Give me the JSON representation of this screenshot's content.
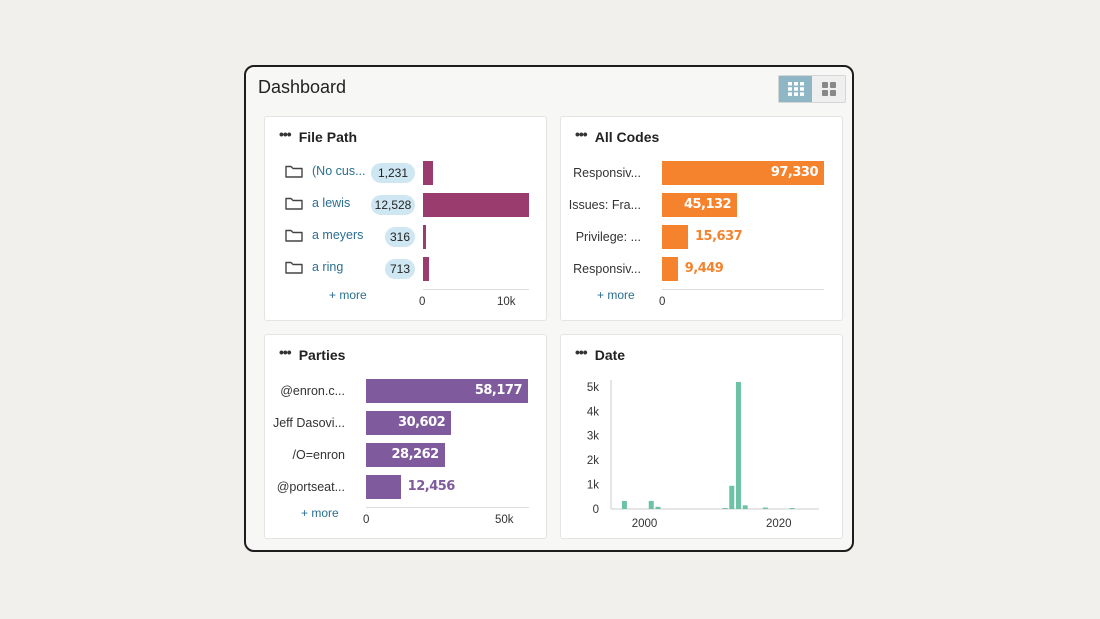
{
  "dashboard": {
    "title": "Dashboard",
    "view_toggle": [
      "grid-view-icon",
      "tile-view-icon"
    ]
  },
  "file_path": {
    "title": "File Path",
    "more": "+ more",
    "axis_ticks": [
      "0",
      "10k"
    ],
    "color": "#9b3c6e",
    "rows": [
      {
        "label": "(No cus...",
        "count": "1,231",
        "value": 1231
      },
      {
        "label": "a lewis",
        "count": "12,528",
        "value": 12528
      },
      {
        "label": "a meyers",
        "count": "316",
        "value": 316
      },
      {
        "label": "a ring",
        "count": "713",
        "value": 713
      }
    ]
  },
  "all_codes": {
    "title": "All Codes",
    "more": "+ more",
    "axis_ticks": [
      "0"
    ],
    "color": "#f5832d",
    "rows": [
      {
        "label": "Responsiv...",
        "count": "97,330",
        "value": 97330
      },
      {
        "label": "Issues: Fra...",
        "count": "45,132",
        "value": 45132
      },
      {
        "label": "Privilege: ...",
        "count": "15,637",
        "value": 15637
      },
      {
        "label": "Responsiv...",
        "count": "9,449",
        "value": 9449
      }
    ]
  },
  "parties": {
    "title": "Parties",
    "more": "+ more",
    "axis_ticks": [
      "0",
      "50k"
    ],
    "color": "#7f5a9c",
    "rows": [
      {
        "label": "@enron.c...",
        "count": "58,177",
        "value": 58177
      },
      {
        "label": "Jeff Dasovi...",
        "count": "30,602",
        "value": 30602
      },
      {
        "label": "/O=enron",
        "count": "28,262",
        "value": 28262
      },
      {
        "label": "@portseat...",
        "count": "12,456",
        "value": 12456
      }
    ]
  },
  "date": {
    "title": "Date",
    "color": "#6cc3a4",
    "chart_data": {
      "type": "bar",
      "title": "Date",
      "xlabel": "",
      "ylabel": "",
      "x": [
        1997,
        2001,
        2002,
        2012,
        2013,
        2014,
        2015,
        2018,
        2022
      ],
      "values": [
        330,
        330,
        90,
        40,
        950,
        5200,
        150,
        60,
        40
      ],
      "ylim": [
        0,
        5200
      ],
      "xlim": [
        1995,
        2026
      ],
      "y_ticks": [
        "0",
        "1k",
        "2k",
        "3k",
        "4k",
        "5k"
      ],
      "x_ticks": [
        "2000",
        "2020"
      ]
    }
  }
}
